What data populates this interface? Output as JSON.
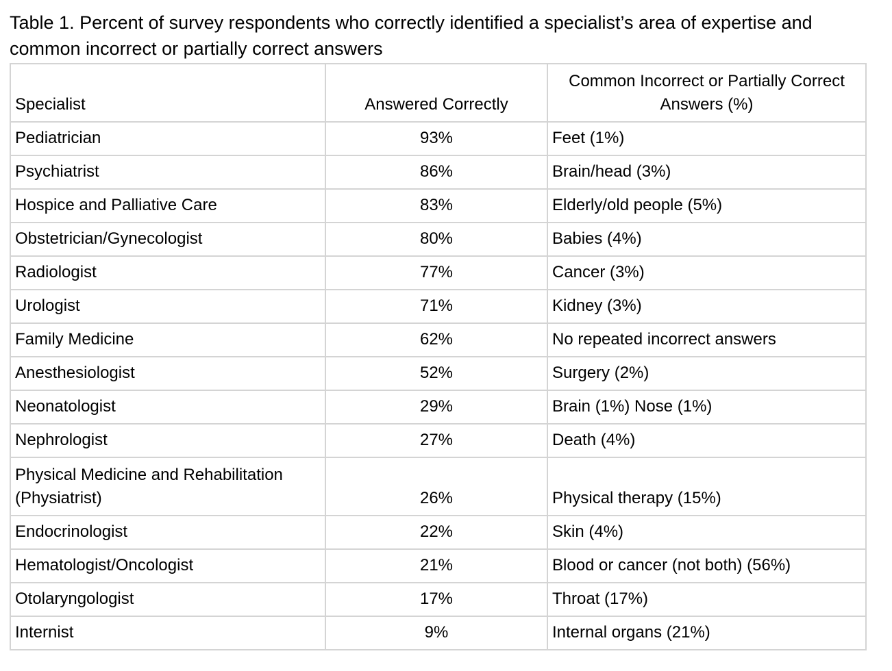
{
  "caption": "Table 1. Percent of survey respondents who correctly identified a specialist’s area of expertise and common incorrect or partially correct answers",
  "headers": {
    "specialist": "Specialist",
    "answered_correctly": "Answered Correctly",
    "common_incorrect": "Common Incorrect or Partially Correct Answers (%)"
  },
  "rows": [
    {
      "specialist": "Pediatrician",
      "correct": "93%",
      "incorrect": "Feet (1%)"
    },
    {
      "specialist": "Psychiatrist",
      "correct": "86%",
      "incorrect": "Brain/head (3%)"
    },
    {
      "specialist": "Hospice and Palliative Care",
      "correct": "83%",
      "incorrect": "Elderly/old people (5%)"
    },
    {
      "specialist": "Obstetrician/Gynecologist",
      "correct": "80%",
      "incorrect": "Babies (4%)"
    },
    {
      "specialist": "Radiologist",
      "correct": "77%",
      "incorrect": "Cancer (3%)"
    },
    {
      "specialist": "Urologist",
      "correct": "71%",
      "incorrect": "Kidney (3%)"
    },
    {
      "specialist": "Family Medicine",
      "correct": "62%",
      "incorrect": "No repeated incorrect answers"
    },
    {
      "specialist": "Anesthesiologist",
      "correct": "52%",
      "incorrect": "Surgery (2%)"
    },
    {
      "specialist": "Neonatologist",
      "correct": "29%",
      "incorrect": "Brain (1%) Nose (1%)"
    },
    {
      "specialist": "Nephrologist",
      "correct": "27%",
      "incorrect": "Death (4%)"
    },
    {
      "specialist": "Physical Medicine and Rehabilitation (Physiatrist)",
      "correct": "26%",
      "incorrect": "Physical therapy (15%)"
    },
    {
      "specialist": "Endocrinologist",
      "correct": "22%",
      "incorrect": "Skin (4%)"
    },
    {
      "specialist": "Hematologist/Oncologist",
      "correct": "21%",
      "incorrect": "Blood or cancer (not both) (56%)"
    },
    {
      "specialist": "Otolaryngologist",
      "correct": "17%",
      "incorrect": "Throat (17%)"
    },
    {
      "specialist": "Internist",
      "correct": "9%",
      "incorrect": "Internal organs (21%)"
    }
  ]
}
